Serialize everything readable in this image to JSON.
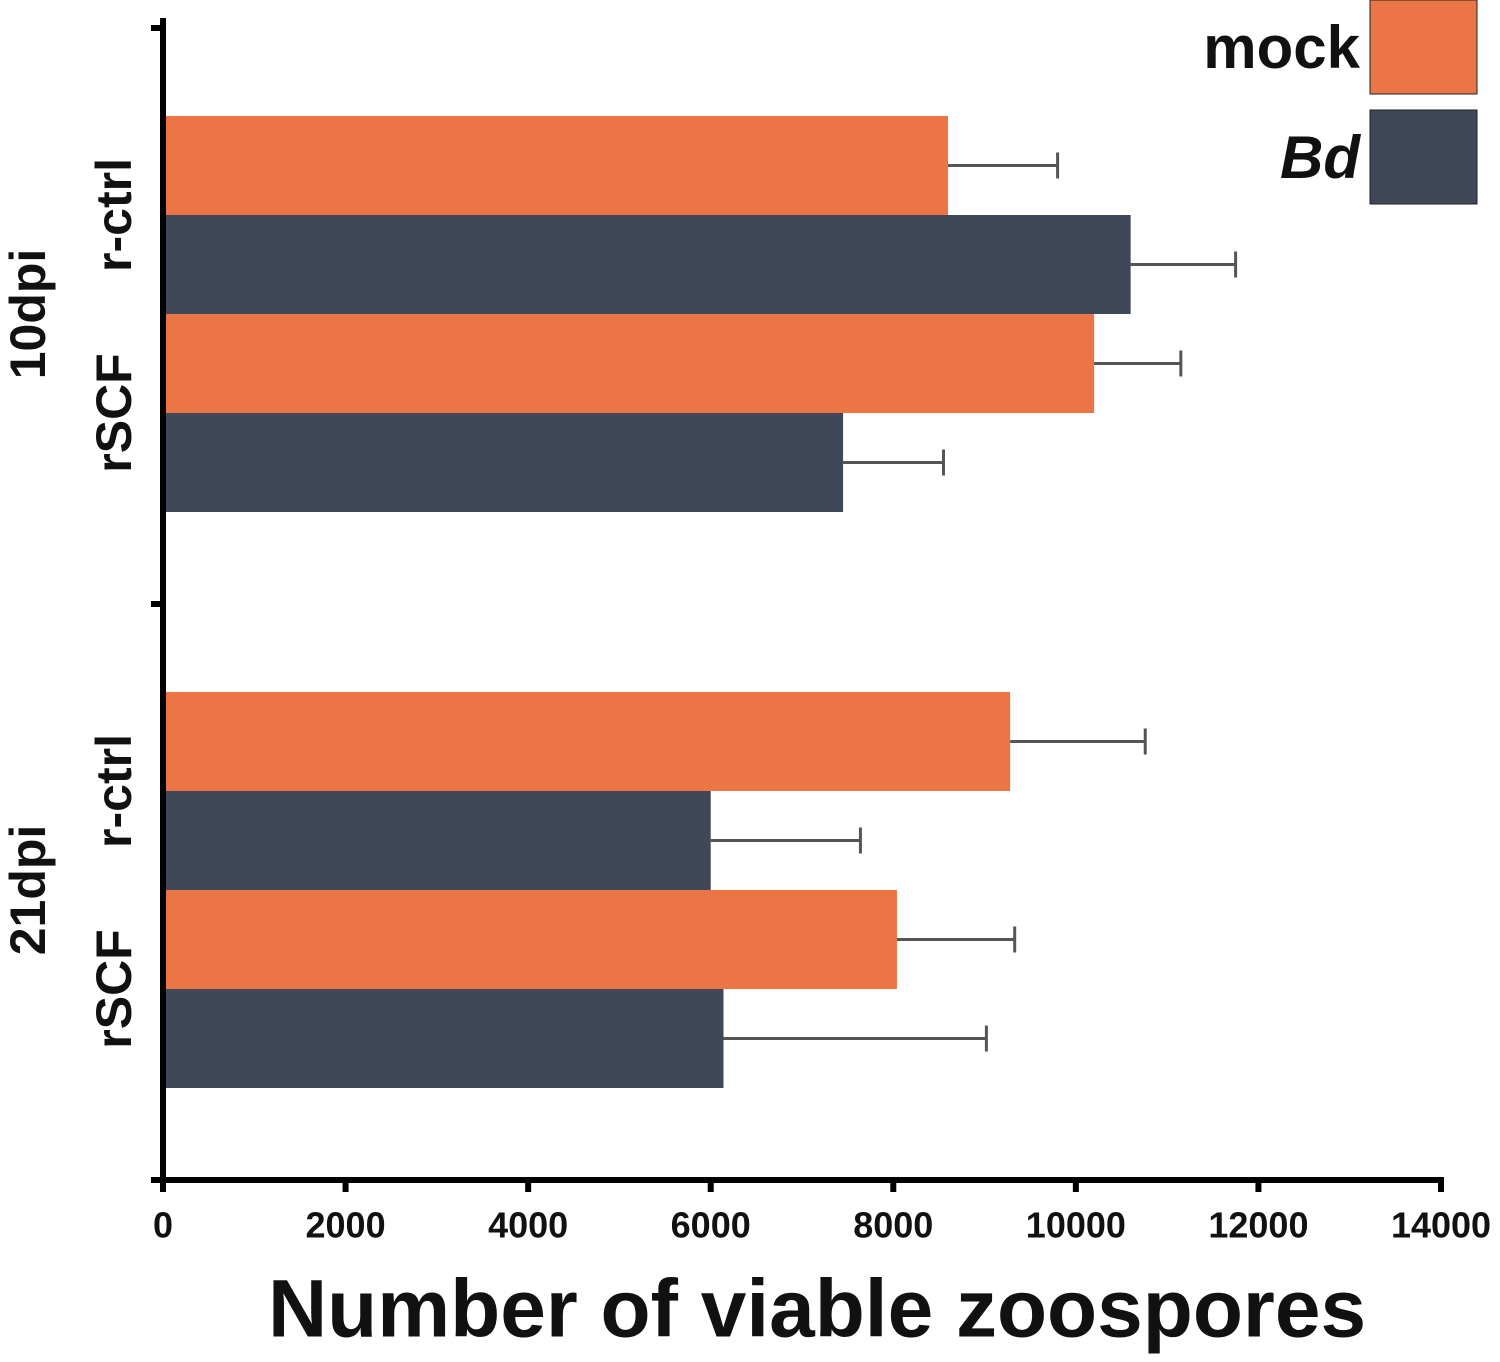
{
  "chart_data": {
    "type": "grouped-hbar-errorbar",
    "xlabel": "Number of viable zoospores",
    "category_groups": [
      "10dpi",
      "21dpi"
    ],
    "categories": [
      "r-ctrl",
      "rSCF",
      "r-ctrl",
      "rSCF"
    ],
    "series": [
      {
        "name": "mock",
        "color": "#ec7546",
        "values": [
          8600,
          10200,
          9280,
          8040
        ],
        "errors": [
          1200,
          950,
          1480,
          1290
        ]
      },
      {
        "name": "Bd",
        "color": "#3f4859",
        "values": [
          10600,
          7450,
          6000,
          6140
        ],
        "errors": [
          1150,
          1100,
          1640,
          2880
        ]
      }
    ],
    "xlim": [
      0,
      14000
    ],
    "xticks": [
      0,
      2000,
      4000,
      6000,
      8000,
      10000,
      12000,
      14000
    ],
    "legend": "top-right"
  }
}
